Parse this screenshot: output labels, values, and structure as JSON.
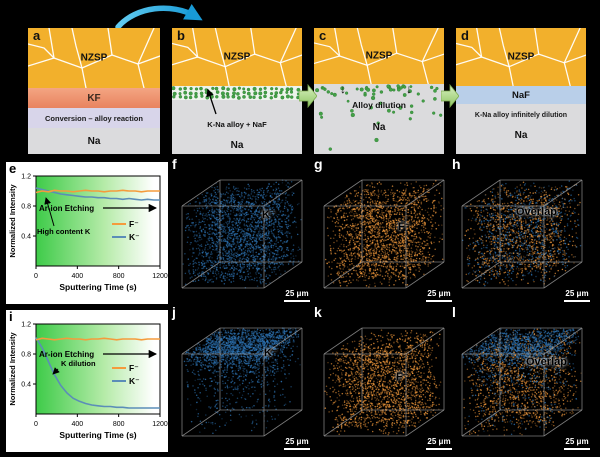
{
  "colors": {
    "background": "#000000",
    "nzsp_yellow": "#F2B02C",
    "kf_band": "#EE8F6B",
    "naf_band": "#B9CFE9",
    "na_gray": "#DBDBDD",
    "alloy_dot_green": "#43A047",
    "flow_arrow_green": "#A9D18E",
    "curved_arrow_blue": "#29A9E0",
    "f_series_orange": "#F59B3C",
    "k_series_blue": "#5B8DB8",
    "scatter_orange": "#F59B3C",
    "scatter_blue": "#2E75B6"
  },
  "icons": {
    "down_arrow": "↓"
  },
  "schematic": {
    "panels": [
      {
        "letter": "a",
        "material": "NZSP",
        "interlayer": "KF",
        "caption": "Conversion – alloy reaction",
        "substrate": "Na"
      },
      {
        "letter": "b",
        "material": "NZSP",
        "annotation": "K-Na alloy + NaF",
        "substrate": "Na"
      },
      {
        "letter": "c",
        "material": "NZSP",
        "annotation": "Alloy dilution",
        "substrate": "Na"
      },
      {
        "letter": "d",
        "material": "NZSP",
        "interlayer": "NaF",
        "caption": "K-Na alloy infinitely dilution",
        "substrate": "Na"
      }
    ]
  },
  "chart_data": [
    {
      "id": "e",
      "type": "line",
      "xlabel": "Sputtering Time (s)",
      "ylabel": "Normalized Intensity",
      "xlim": [
        0,
        1200
      ],
      "ylim": [
        0,
        1.2
      ],
      "xticks": [
        0,
        400,
        800,
        1200
      ],
      "yticks": [
        0.4,
        0.8,
        1.2
      ],
      "grid": false,
      "legend_position": "right-middle",
      "annotations": {
        "etching": "Ar-ion Etching",
        "note": "High content K"
      },
      "legend": [
        {
          "label": "F⁻",
          "color": "#F59B3C"
        },
        {
          "label": "K⁻",
          "color": "#5B8DB8"
        }
      ],
      "x": [
        0,
        60,
        120,
        180,
        240,
        300,
        360,
        420,
        480,
        540,
        600,
        660,
        720,
        780,
        840,
        900,
        960,
        1020,
        1080,
        1140,
        1200
      ],
      "series": [
        {
          "name": "F⁻",
          "color": "#F59B3C",
          "y": [
            0.98,
            1.0,
            0.99,
            1.01,
            1.0,
            1.0,
            0.99,
            1.0,
            1.01,
            1.0,
            1.0,
            0.99,
            1.0,
            1.0,
            1.01,
            1.0,
            1.0,
            0.99,
            1.0,
            1.0,
            1.0
          ]
        },
        {
          "name": "K⁻",
          "color": "#5B8DB8",
          "y": [
            1.04,
            1.02,
            1.0,
            0.98,
            0.96,
            0.95,
            0.94,
            0.93,
            0.92,
            0.92,
            0.91,
            0.91,
            0.9,
            0.9,
            0.89,
            0.9,
            0.89,
            0.88,
            0.89,
            0.88,
            0.88
          ]
        }
      ]
    },
    {
      "id": "i",
      "type": "line",
      "xlabel": "Sputtering Time (s)",
      "ylabel": "Normalized Intensity",
      "xlim": [
        0,
        1200
      ],
      "ylim": [
        0,
        1.2
      ],
      "xticks": [
        0,
        400,
        800,
        1200
      ],
      "yticks": [
        0.4,
        0.8,
        1.2
      ],
      "grid": false,
      "legend_position": "right-middle",
      "annotations": {
        "etching": "Ar-ion Etching",
        "note": "K dilution"
      },
      "legend": [
        {
          "label": "F⁻",
          "color": "#F59B3C"
        },
        {
          "label": "K⁻",
          "color": "#5B8DB8"
        }
      ],
      "x": [
        0,
        60,
        120,
        180,
        240,
        300,
        360,
        420,
        480,
        540,
        600,
        660,
        720,
        780,
        840,
        900,
        960,
        1020,
        1080,
        1140,
        1200
      ],
      "series": [
        {
          "name": "F⁻",
          "color": "#F59B3C",
          "y": [
            0.99,
            1.01,
            1.0,
            0.99,
            1.0,
            1.01,
            1.0,
            1.0,
            0.99,
            1.0,
            1.0,
            1.01,
            1.0,
            0.99,
            1.0,
            1.0,
            1.0,
            0.99,
            1.0,
            1.0,
            1.0
          ]
        },
        {
          "name": "K⁻",
          "color": "#5B8DB8",
          "y": [
            1.02,
            0.88,
            0.7,
            0.52,
            0.38,
            0.28,
            0.21,
            0.17,
            0.14,
            0.12,
            0.11,
            0.1,
            0.1,
            0.09,
            0.09,
            0.08,
            0.08,
            0.08,
            0.08,
            0.08,
            0.08
          ]
        }
      ]
    }
  ],
  "cubes": [
    {
      "letter": "f",
      "tag": "K⁻",
      "scale_label": "25 μm",
      "clouds": [
        {
          "color": "#2E75B6",
          "dist": "uniform",
          "count": 2200
        }
      ]
    },
    {
      "letter": "g",
      "tag": "F⁻",
      "scale_label": "25 μm",
      "clouds": [
        {
          "color": "#F59B3C",
          "dist": "uniform",
          "count": 2000
        }
      ]
    },
    {
      "letter": "h",
      "tag": "Overlap",
      "scale_label": "25 μm",
      "clouds": [
        {
          "color": "#F59B3C",
          "dist": "uniform",
          "count": 1200
        },
        {
          "color": "#2E75B6",
          "dist": "uniform",
          "count": 800
        }
      ]
    },
    {
      "letter": "j",
      "tag": "K⁻",
      "scale_label": "25 μm",
      "clouds": [
        {
          "color": "#2E75B6",
          "dist": "top",
          "count": 2200
        }
      ]
    },
    {
      "letter": "k",
      "tag": "F⁻",
      "scale_label": "25 μm",
      "clouds": [
        {
          "color": "#F59B3C",
          "dist": "uniform",
          "count": 2000
        }
      ]
    },
    {
      "letter": "l",
      "tag": "Overlap",
      "scale_label": "25 μm",
      "clouds": [
        {
          "color": "#F59B3C",
          "dist": "uniform",
          "count": 1300
        },
        {
          "color": "#2E75B6",
          "dist": "top",
          "count": 1500
        }
      ]
    }
  ]
}
